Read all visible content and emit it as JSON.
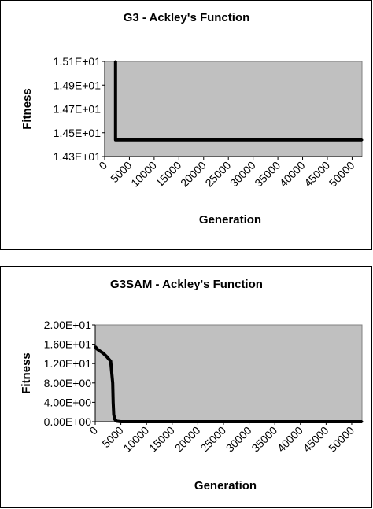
{
  "chart_data": [
    {
      "type": "line",
      "title": "G3 - Ackley's Function",
      "xlabel": "Generation",
      "ylabel": "Fitness",
      "xlim": [
        0,
        52000
      ],
      "ylim": [
        14.3,
        15.1
      ],
      "xticks": [
        0,
        5000,
        10000,
        15000,
        20000,
        25000,
        30000,
        35000,
        40000,
        45000,
        50000
      ],
      "xtick_labels": [
        "0",
        "5000",
        "10000",
        "15000",
        "20000",
        "25000",
        "30000",
        "35000",
        "40000",
        "45000",
        "50000"
      ],
      "yticks": [
        14.3,
        14.5,
        14.7,
        14.9,
        15.1
      ],
      "ytick_labels": [
        "1.43E+01",
        "1.45E+01",
        "1.47E+01",
        "1.49E+01",
        "1.51E+01"
      ],
      "grid": false,
      "plot_background": "#c0c0c0",
      "line_color": "#000000",
      "x": [
        2200,
        2200,
        2300,
        52000
      ],
      "y": [
        15.1,
        14.44,
        14.44,
        14.44
      ]
    },
    {
      "type": "line",
      "title": "G3SAM - Ackley's Function",
      "xlabel": "Generation",
      "ylabel": "Fitness",
      "xlim": [
        0,
        52000
      ],
      "ylim": [
        0,
        20
      ],
      "xticks": [
        0,
        5000,
        10000,
        15000,
        20000,
        25000,
        30000,
        35000,
        40000,
        45000,
        50000
      ],
      "xtick_labels": [
        "0",
        "5000",
        "10000",
        "15000",
        "20000",
        "25000",
        "30000",
        "35000",
        "40000",
        "45000",
        "50000"
      ],
      "yticks": [
        0,
        4,
        8,
        12,
        16,
        20
      ],
      "ytick_labels": [
        "0.00E+00",
        "4.00E+00",
        "8.00E+00",
        "1.20E+01",
        "1.60E+01",
        "2.00E+01"
      ],
      "grid": false,
      "plot_background": "#c0c0c0",
      "line_color": "#000000",
      "x": [
        0,
        400,
        900,
        1500,
        2200,
        3000,
        3400,
        3500,
        3600,
        3800,
        4200,
        5000,
        52000
      ],
      "y": [
        15.5,
        15.0,
        14.6,
        14.2,
        13.5,
        12.5,
        8.0,
        4.0,
        1.5,
        0.5,
        0.1,
        0.0,
        0.0
      ]
    }
  ]
}
